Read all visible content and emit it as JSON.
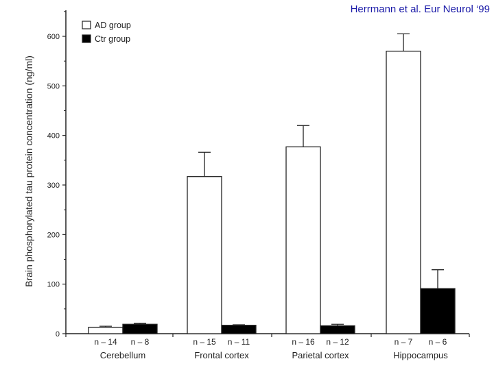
{
  "citation": "Herrmann et al. Eur Neurol ‘99",
  "chart_data": {
    "type": "bar",
    "title": "",
    "xlabel": "",
    "ylabel": "Brain phosphorylated tau protein concentration (ng/ml)",
    "ylim": [
      0,
      650
    ],
    "yticks": [
      0,
      100,
      200,
      300,
      400,
      500,
      600
    ],
    "categories": [
      "Cerebellum",
      "Frontal cortex",
      "Parietal cortex",
      "Hippocampus"
    ],
    "series": [
      {
        "name": "AD group",
        "color": "#ffffff",
        "values": [
          13,
          317,
          377,
          570
        ],
        "error_upper": [
          15,
          366,
          420,
          605
        ],
        "n_labels": [
          "n – 14",
          "n – 15",
          "n – 16",
          "n – 7"
        ]
      },
      {
        "name": "Ctr group",
        "color": "#000000",
        "values": [
          19,
          17,
          16,
          91
        ],
        "error_upper": [
          21,
          18,
          19,
          129
        ],
        "n_labels": [
          "n – 8",
          "n – 11",
          "n – 12",
          "n – 6"
        ]
      }
    ],
    "legend_position": "top-left",
    "grid": false
  }
}
